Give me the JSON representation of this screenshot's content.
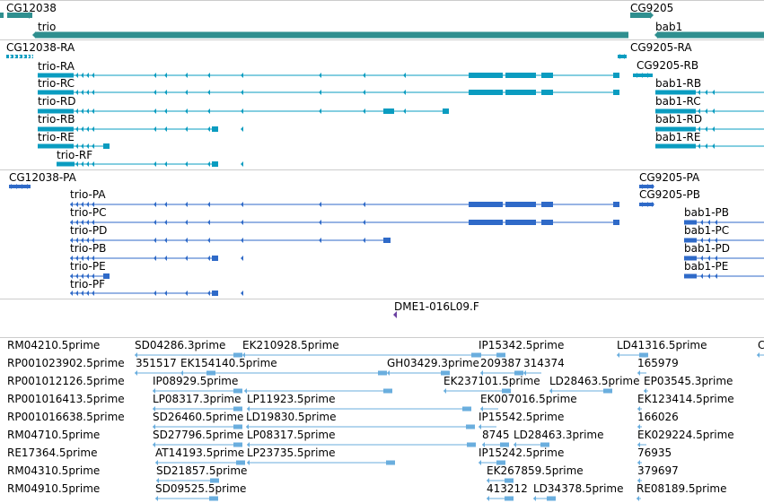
{
  "colors": {
    "gene": "#2f8f8f",
    "transcript": "#0a9cc0",
    "protein": "#2f6ac8",
    "est": "#6aaede",
    "sts": "#6a3fa0",
    "separator": "#cccccc"
  },
  "tracks": {
    "genes": {
      "labels": [
        "CG12038",
        "trio",
        "CG9205",
        "bab1"
      ]
    },
    "transcripts": {
      "labels": [
        "CG12038-RA",
        "trio-RA",
        "trio-RC",
        "trio-RD",
        "trio-RB",
        "trio-RE",
        "trio-RF",
        "CG9205-RA",
        "CG9205-RB",
        "bab1-RB",
        "bab1-RC",
        "bab1-RD",
        "bab1-RE"
      ]
    },
    "proteins": {
      "labels": [
        "CG12038-PA",
        "trio-PA",
        "trio-PC",
        "trio-PD",
        "trio-PB",
        "trio-PE",
        "trio-PF",
        "CG9205-PA",
        "CG9205-PB",
        "bab1-PB",
        "bab1-PC",
        "bab1-PD",
        "bab1-PE"
      ]
    },
    "sts": {
      "labels": [
        "DME1-016L09.F"
      ]
    },
    "est": {
      "labels": [
        "RM04210.5prime",
        "SD04286.3prime",
        "EK210928.5prime",
        "IP15342.5prime",
        "LD41316.5prime",
        "C",
        "RP001023902.5prime",
        "351517",
        "EK154140.5prime",
        "GH03429.3prime",
        "209387",
        "314374",
        "165979",
        "RP001012126.5prime",
        "IP08929.5prime",
        "EK237101.5prime",
        "LD28463.5prime",
        "EP03545.3prime",
        "RP001016413.5prime",
        "LP08317.3prime",
        "LP11923.5prime",
        "EK007016.5prime",
        "EK123414.5prime",
        "RP001016638.5prime",
        "SD26460.5prime",
        "LD19830.5prime",
        "IP15542.5prime",
        "166026",
        "RM04710.5prime",
        "SD27796.5prime",
        "LP08317.5prime",
        "8745",
        "LD28463.3prime",
        "EK029224.5prime",
        "RE17364.5prime",
        "AT14193.5prime",
        "LP23735.5prime",
        "IP15242.5prime",
        "76935",
        "RM04310.5prime",
        "SD21857.5prime",
        "EK267859.5prime",
        "379697",
        "RM04910.5prime",
        "SD09525.5prime",
        "413212",
        "LD34378.5prime",
        "RE08189.5prime"
      ]
    }
  }
}
